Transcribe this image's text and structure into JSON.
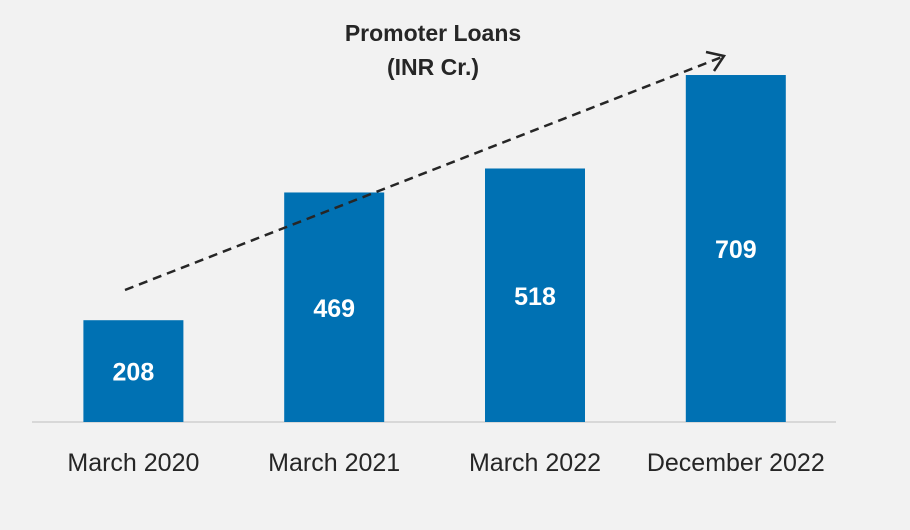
{
  "chart_data": {
    "type": "bar",
    "title": [
      "Promoter Loans",
      "(INR Cr.)"
    ],
    "categories": [
      "March 2020",
      "March 2021",
      "March 2022",
      "December 2022"
    ],
    "values": [
      208,
      469,
      518,
      709
    ],
    "color": "#0071b3"
  }
}
